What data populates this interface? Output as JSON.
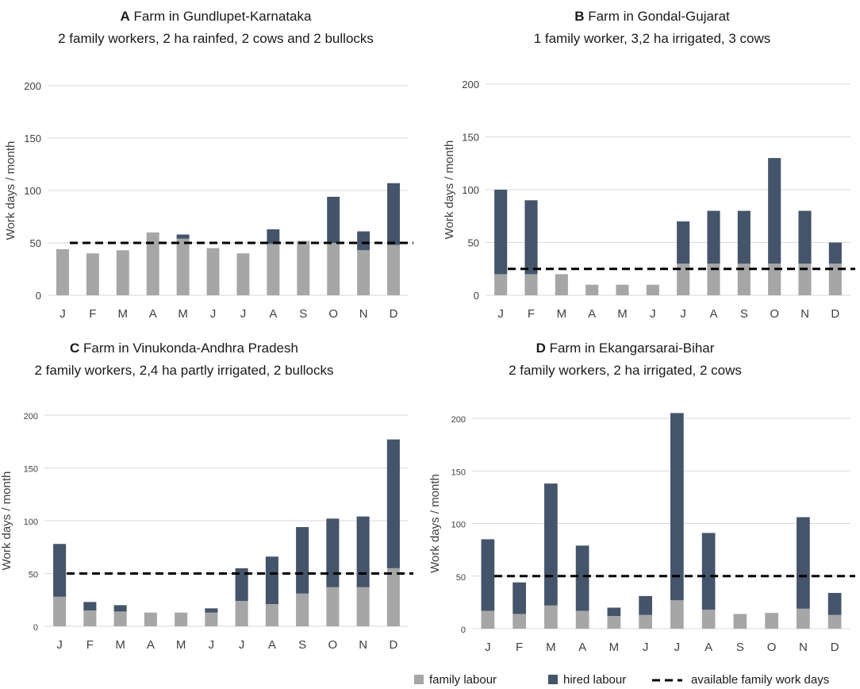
{
  "colors": {
    "family": "#a6a6a6",
    "hired": "#44546a",
    "grid": "#d9d9d9",
    "text": "#404040",
    "title": "#1a1a1a",
    "dashed": "#000000"
  },
  "legend": {
    "family_label": "family labour",
    "hired_label": "hired labour",
    "available_label": "available family work days"
  },
  "chart_data": [
    {
      "type": "bar",
      "stacked": true,
      "panel_letter": "A",
      "title": "Farm in Gundlupet-Karnataka",
      "subtitle": "2 family workers, 2 ha rainfed, 2 cows and 2 bullocks",
      "ylabel": "Work days / month",
      "xlabel": "",
      "ylim": [
        0,
        200
      ],
      "yticks": [
        0,
        50,
        100,
        150,
        200
      ],
      "grid": true,
      "categories": [
        "J",
        "F",
        "M",
        "A",
        "M",
        "J",
        "J",
        "A",
        "S",
        "O",
        "N",
        "D"
      ],
      "series": [
        {
          "name": "family labour",
          "values": [
            44,
            40,
            43,
            60,
            54,
            45,
            40,
            49,
            52,
            50,
            43,
            48
          ]
        },
        {
          "name": "hired labour",
          "values": [
            0,
            0,
            0,
            0,
            4,
            0,
            0,
            14,
            0,
            44,
            18,
            59
          ]
        }
      ],
      "available_family_work_days": 50
    },
    {
      "type": "bar",
      "stacked": true,
      "panel_letter": "B",
      "title": "Farm in Gondal-Gujarat",
      "subtitle": "1 family worker, 3,2 ha irrigated, 3 cows",
      "ylabel": "Work days / month",
      "xlabel": "",
      "ylim": [
        0,
        200
      ],
      "yticks": [
        0,
        50,
        100,
        150,
        200
      ],
      "grid": true,
      "categories": [
        "J",
        "F",
        "M",
        "A",
        "M",
        "J",
        "J",
        "A",
        "S",
        "O",
        "N",
        "D"
      ],
      "series": [
        {
          "name": "family labour",
          "values": [
            20,
            20,
            20,
            10,
            10,
            10,
            30,
            30,
            30,
            30,
            30,
            30
          ]
        },
        {
          "name": "hired labour",
          "values": [
            80,
            70,
            0,
            0,
            0,
            0,
            40,
            50,
            50,
            100,
            50,
            20
          ]
        }
      ],
      "available_family_work_days": 25
    },
    {
      "type": "bar",
      "stacked": true,
      "panel_letter": "C",
      "title": "Farm in Vinukonda-Andhra Pradesh",
      "subtitle": "2 family workers, 2,4 ha partly irrigated, 2 bullocks",
      "ylabel": "Work days / month",
      "xlabel": "",
      "ylim": [
        0,
        200
      ],
      "yticks": [
        0,
        50,
        100,
        150,
        200
      ],
      "grid": true,
      "categories": [
        "J",
        "F",
        "M",
        "A",
        "M",
        "J",
        "J",
        "A",
        "S",
        "O",
        "N",
        "D"
      ],
      "series": [
        {
          "name": "family labour",
          "values": [
            28,
            15,
            14,
            13,
            13,
            13,
            24,
            21,
            31,
            37,
            37,
            55
          ]
        },
        {
          "name": "hired labour",
          "values": [
            50,
            8,
            6,
            0,
            0,
            4,
            31,
            45,
            63,
            65,
            67,
            122
          ]
        }
      ],
      "available_family_work_days": 50
    },
    {
      "type": "bar",
      "stacked": true,
      "panel_letter": "D",
      "title": "Farm in Ekangarsarai-Bihar",
      "subtitle": "2 family workers, 2 ha irrigated, 2 cows",
      "ylabel": "Work days / month",
      "xlabel": "",
      "ylim": [
        0,
        200
      ],
      "yticks": [
        0,
        50,
        100,
        150,
        200
      ],
      "grid": true,
      "categories": [
        "J",
        "F",
        "M",
        "A",
        "M",
        "J",
        "J",
        "A",
        "S",
        "O",
        "N",
        "D"
      ],
      "series": [
        {
          "name": "family labour",
          "values": [
            17,
            14,
            22,
            17,
            12,
            13,
            27,
            18,
            14,
            15,
            19,
            13
          ]
        },
        {
          "name": "hired labour",
          "values": [
            68,
            30,
            116,
            62,
            8,
            18,
            178,
            73,
            0,
            0,
            87,
            21
          ]
        }
      ],
      "available_family_work_days": 50
    }
  ]
}
